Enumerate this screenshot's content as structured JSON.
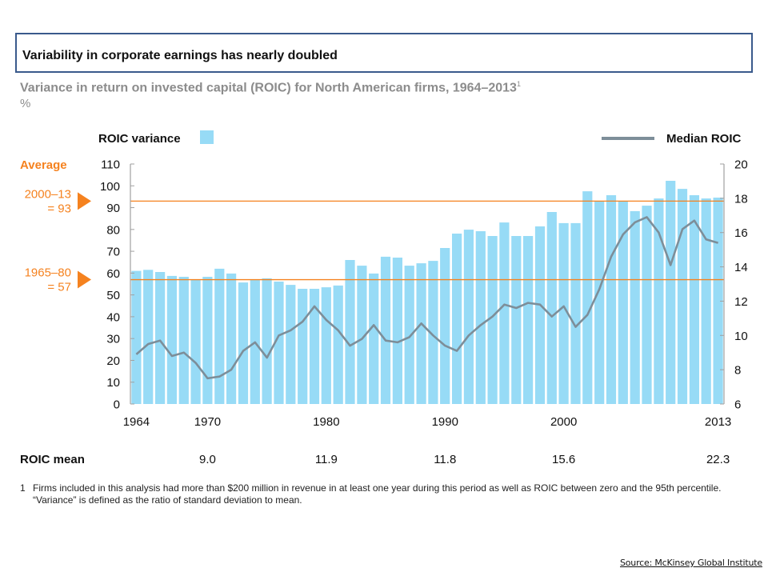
{
  "header": {
    "title": "Variability in corporate earnings has nearly doubled",
    "subtitle": "Variance in return on invested capital (ROIC) for North American firms, 1964–2013",
    "subtitle_footnote_marker": "1",
    "unit": "%"
  },
  "colors": {
    "bar": "#97dbf6",
    "median_line": "#7d8e99",
    "average": "#f5821f",
    "axis": "#a0a0a0",
    "title_border": "#3a5a8c"
  },
  "chart_data": {
    "type": "bar+line",
    "title": "Variance in return on invested capital (ROIC) for North American firms, 1964–2013",
    "xlabel": "",
    "ylabel": "%",
    "x": [
      1964,
      1965,
      1966,
      1967,
      1968,
      1969,
      1970,
      1971,
      1972,
      1973,
      1974,
      1975,
      1976,
      1977,
      1978,
      1979,
      1980,
      1981,
      1982,
      1983,
      1984,
      1985,
      1986,
      1987,
      1988,
      1989,
      1990,
      1991,
      1992,
      1993,
      1994,
      1995,
      1996,
      1997,
      1998,
      1999,
      2000,
      2001,
      2002,
      2003,
      2004,
      2005,
      2006,
      2007,
      2008,
      2009,
      2010,
      2011,
      2012,
      2013
    ],
    "x_tick_labels": [
      "1964",
      "1970",
      "1980",
      "1990",
      "2000",
      "2013"
    ],
    "series": [
      {
        "name": "ROIC variance",
        "type": "bar",
        "axis": "left",
        "values": [
          61,
          61.5,
          60.5,
          58.7,
          58.3,
          57.2,
          58.3,
          62,
          59.8,
          55.7,
          56.8,
          57.6,
          56.1,
          54.6,
          52.8,
          52.8,
          53.5,
          54.3,
          66,
          63.4,
          59.8,
          67.5,
          67.1,
          63.4,
          64.5,
          65.6,
          71.5,
          78.1,
          79.9,
          79.2,
          77,
          83.2,
          77,
          77,
          81.4,
          88,
          82.9,
          82.9,
          97.5,
          92.8,
          95.7,
          93.1,
          88.4,
          90.9,
          94.2,
          102.3,
          98.6,
          95.7,
          94.2,
          94.6
        ]
      },
      {
        "name": "Median ROIC",
        "type": "line",
        "axis": "right",
        "values": [
          8.9,
          9.5,
          9.7,
          8.8,
          9.0,
          8.4,
          7.5,
          7.6,
          8.0,
          9.1,
          9.6,
          8.7,
          10.0,
          10.3,
          10.8,
          11.7,
          10.9,
          10.3,
          9.4,
          9.8,
          10.6,
          9.7,
          9.6,
          9.9,
          10.7,
          10.0,
          9.4,
          9.1,
          10.0,
          10.6,
          11.1,
          11.8,
          11.6,
          11.9,
          11.8,
          11.1,
          11.7,
          10.5,
          11.2,
          12.7,
          14.6,
          15.9,
          16.6,
          16.9,
          16.0,
          14.1,
          16.2,
          16.7,
          15.6,
          15.4
        ]
      }
    ],
    "y_left": {
      "range": [
        0,
        110
      ],
      "ticks": [
        0,
        10,
        20,
        30,
        40,
        50,
        60,
        70,
        80,
        90,
        100,
        110
      ]
    },
    "y_right": {
      "range": [
        6,
        20
      ],
      "ticks": [
        6,
        8,
        10,
        12,
        14,
        16,
        18,
        20
      ]
    },
    "reference_lines": [
      {
        "label_line1": "2000–13",
        "label_line2": "= 93",
        "value": 93,
        "axis": "left"
      },
      {
        "label_line1": "1965–80",
        "label_line2": "= 57",
        "value": 57,
        "axis": "left"
      }
    ],
    "reference_heading": "Average",
    "legend": [
      {
        "label": "ROIC variance",
        "marker": "square",
        "placement": "top-left"
      },
      {
        "label": "Median ROIC",
        "marker": "line",
        "placement": "top-right"
      }
    ],
    "grid": false,
    "roic_mean": {
      "label": "ROIC mean",
      "entries": [
        {
          "under_year": 1970,
          "value": "9.0"
        },
        {
          "under_year": 1980,
          "value": "11.9"
        },
        {
          "under_year": 1990,
          "value": "11.8"
        },
        {
          "under_year": 2000,
          "value": "15.6"
        },
        {
          "under_year": 2013,
          "value": "22.3"
        }
      ]
    }
  },
  "footnote": {
    "number": "1",
    "text": "Firms included in this analysis had more than $200 million in revenue in at least one year during this period as well as ROIC between zero and the 95th percentile. “Variance” is defined as the ratio of standard deviation to mean."
  },
  "source": "Source: McKinsey Global Institute"
}
